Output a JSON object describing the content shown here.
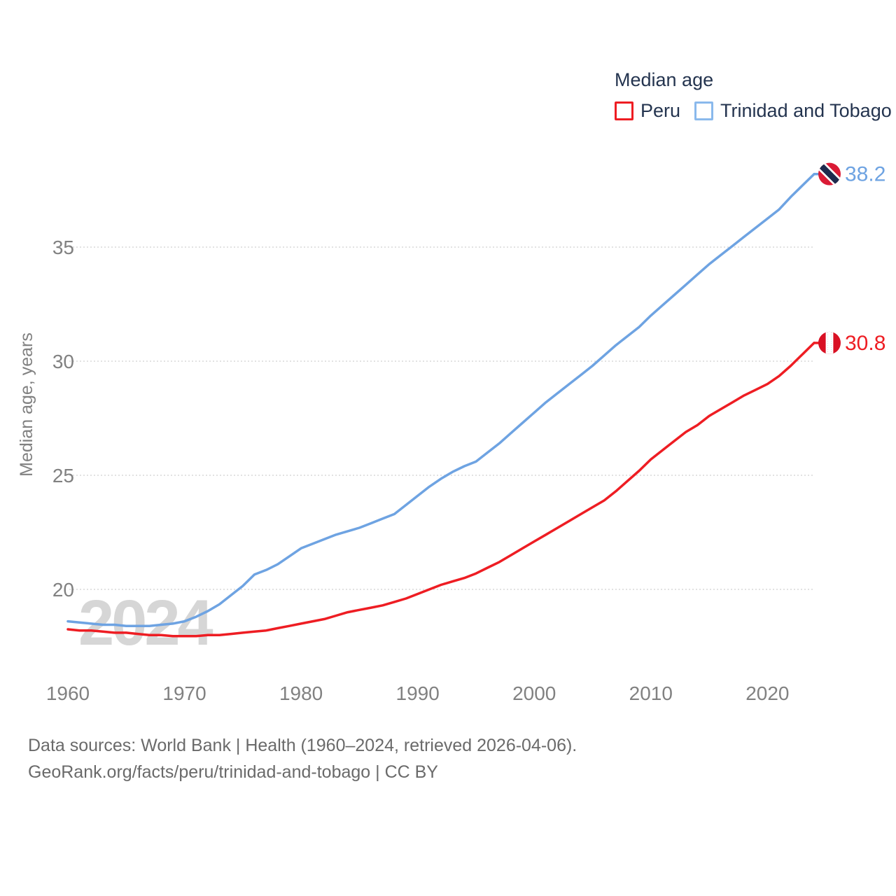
{
  "legend": {
    "title": "Median age",
    "items": [
      {
        "label": "Peru",
        "color": "#ee1d23"
      },
      {
        "label": "Trinidad and Tobago",
        "color": "#8ab9ec"
      }
    ]
  },
  "footer": {
    "line1": "Data sources: World Bank | Health (1960–2024, retrieved 2026-04-06).",
    "line2": "GeoRank.org/facts/peru/trinidad-and-tobago | CC BY"
  },
  "chart_data": {
    "type": "line",
    "title": "Median age",
    "xlabel": "",
    "ylabel": "Median age, years",
    "watermark": "2024",
    "x_start": 1960,
    "x_end": 2024,
    "xticks": [
      1960,
      1970,
      1980,
      1990,
      2000,
      2010,
      2020
    ],
    "yticks": [
      20,
      25,
      30,
      35
    ],
    "ylim": [
      17.5,
      38.6
    ],
    "grid": "horizontal-dotted",
    "legend_position": "top-right",
    "colors": {
      "axis_text": "#818181",
      "grid": "#d9d9d9",
      "watermark": "#d6d6d6",
      "legend_text": "#24344f",
      "peru_flag_red": "#d91023",
      "tt_flag_red": "#da1a35",
      "tt_flag_band": "#1e2a4d"
    },
    "series": [
      {
        "name": "Peru",
        "color": "#ee1d23",
        "end_label": "30.8",
        "values": [
          18.25,
          18.2,
          18.2,
          18.15,
          18.1,
          18.1,
          18.05,
          18.0,
          18.0,
          17.95,
          17.95,
          17.95,
          18.0,
          18.0,
          18.05,
          18.1,
          18.15,
          18.2,
          18.3,
          18.4,
          18.5,
          18.6,
          18.7,
          18.85,
          19.0,
          19.1,
          19.2,
          19.3,
          19.45,
          19.6,
          19.8,
          20.0,
          20.2,
          20.35,
          20.5,
          20.7,
          20.95,
          21.2,
          21.5,
          21.8,
          22.1,
          22.4,
          22.7,
          23.0,
          23.3,
          23.6,
          23.9,
          24.3,
          24.75,
          25.2,
          25.7,
          26.1,
          26.5,
          26.9,
          27.2,
          27.6,
          27.9,
          28.2,
          28.5,
          28.75,
          29.0,
          29.35,
          29.8,
          30.3,
          30.8
        ]
      },
      {
        "name": "Trinidad and Tobago",
        "color": "#6ea3e2",
        "end_label": "38.2",
        "values": [
          18.6,
          18.55,
          18.5,
          18.45,
          18.45,
          18.4,
          18.4,
          18.4,
          18.45,
          18.5,
          18.6,
          18.8,
          19.05,
          19.35,
          19.75,
          20.15,
          20.65,
          20.85,
          21.1,
          21.45,
          21.8,
          22.0,
          22.2,
          22.4,
          22.55,
          22.7,
          22.9,
          23.1,
          23.3,
          23.7,
          24.1,
          24.5,
          24.85,
          25.15,
          25.4,
          25.6,
          26.0,
          26.4,
          26.85,
          27.3,
          27.75,
          28.2,
          28.6,
          29.0,
          29.4,
          29.8,
          30.25,
          30.7,
          31.1,
          31.5,
          32.0,
          32.45,
          32.9,
          33.35,
          33.8,
          34.25,
          34.65,
          35.05,
          35.45,
          35.85,
          36.25,
          36.65,
          37.2,
          37.7,
          38.2
        ]
      }
    ]
  }
}
